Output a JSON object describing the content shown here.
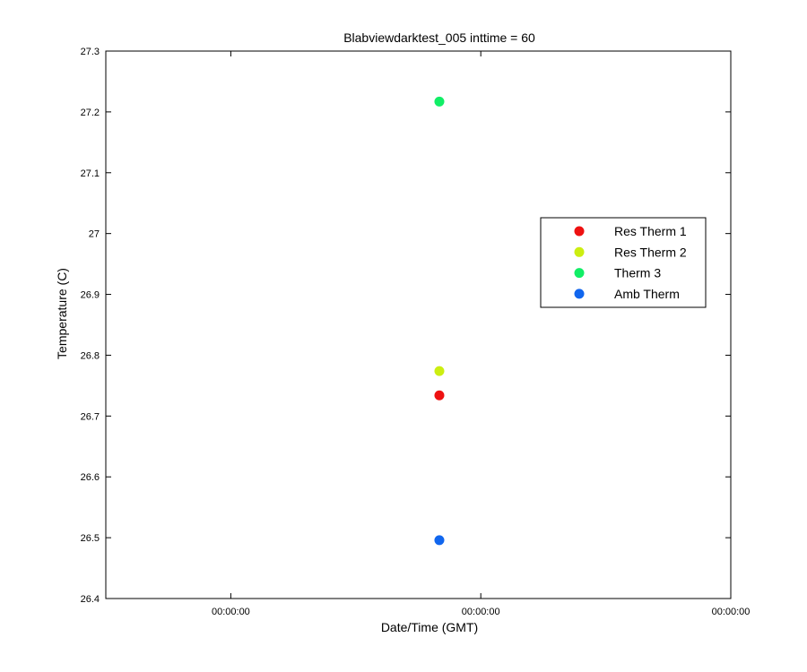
{
  "chart_data": {
    "type": "scatter",
    "title": "Blabviewdarktest_005 inttime = 60",
    "xlabel": "Date/Time (GMT)",
    "ylabel": "Temperature (C)",
    "ylim": [
      26.4,
      27.3
    ],
    "yticks": [
      "26.4",
      "26.5",
      "26.6",
      "26.7",
      "26.8",
      "26.9",
      "27",
      "27.1",
      "27.2",
      "27.3"
    ],
    "xticks": [
      "00:00:00",
      "00:00:00",
      "00:00:00"
    ],
    "grid": false,
    "legend_position": "right",
    "series": [
      {
        "name": "Res Therm 1",
        "color": "#ee1111",
        "values": [
          26.734
        ]
      },
      {
        "name": "Res Therm 2",
        "color": "#ccee11",
        "values": [
          26.774
        ]
      },
      {
        "name": "Therm 3",
        "color": "#11ee66",
        "values": [
          27.217
        ]
      },
      {
        "name": "Amb Therm",
        "color": "#1166ee",
        "values": [
          26.496
        ]
      }
    ]
  }
}
